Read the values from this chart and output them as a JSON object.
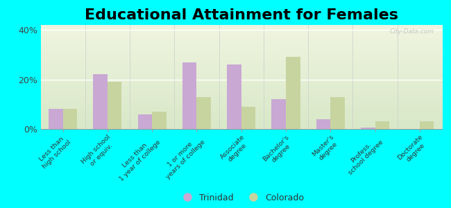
{
  "title": "Educational Attainment for Females",
  "categories": [
    "Less than\nhigh school",
    "High school\nor equiv.",
    "Less than\n1 year of college",
    "1 or more\nyears of college",
    "Associate\ndegree",
    "Bachelor's\ndegree",
    "Master's\ndegree",
    "Profess.\nschool degree",
    "Doctorate\ndegree"
  ],
  "trinidad": [
    8.0,
    22.0,
    6.0,
    27.0,
    26.0,
    12.0,
    4.0,
    0.5,
    0.0
  ],
  "colorado": [
    8.0,
    19.0,
    7.0,
    13.0,
    9.0,
    29.0,
    13.0,
    3.0,
    3.0
  ],
  "trinidad_color": "#c9a8d4",
  "colorado_color": "#c8d4a0",
  "bg_color": "#00ffff",
  "plot_bg_top_color": "#d8e8c8",
  "plot_bg_bottom_color": "#f0f5e0",
  "yticks": [
    0,
    20,
    40
  ],
  "ylim": [
    0,
    42
  ],
  "title_fontsize": 16,
  "legend_trinidad": "Trinidad",
  "legend_colorado": "Colorado",
  "bar_width": 0.32
}
